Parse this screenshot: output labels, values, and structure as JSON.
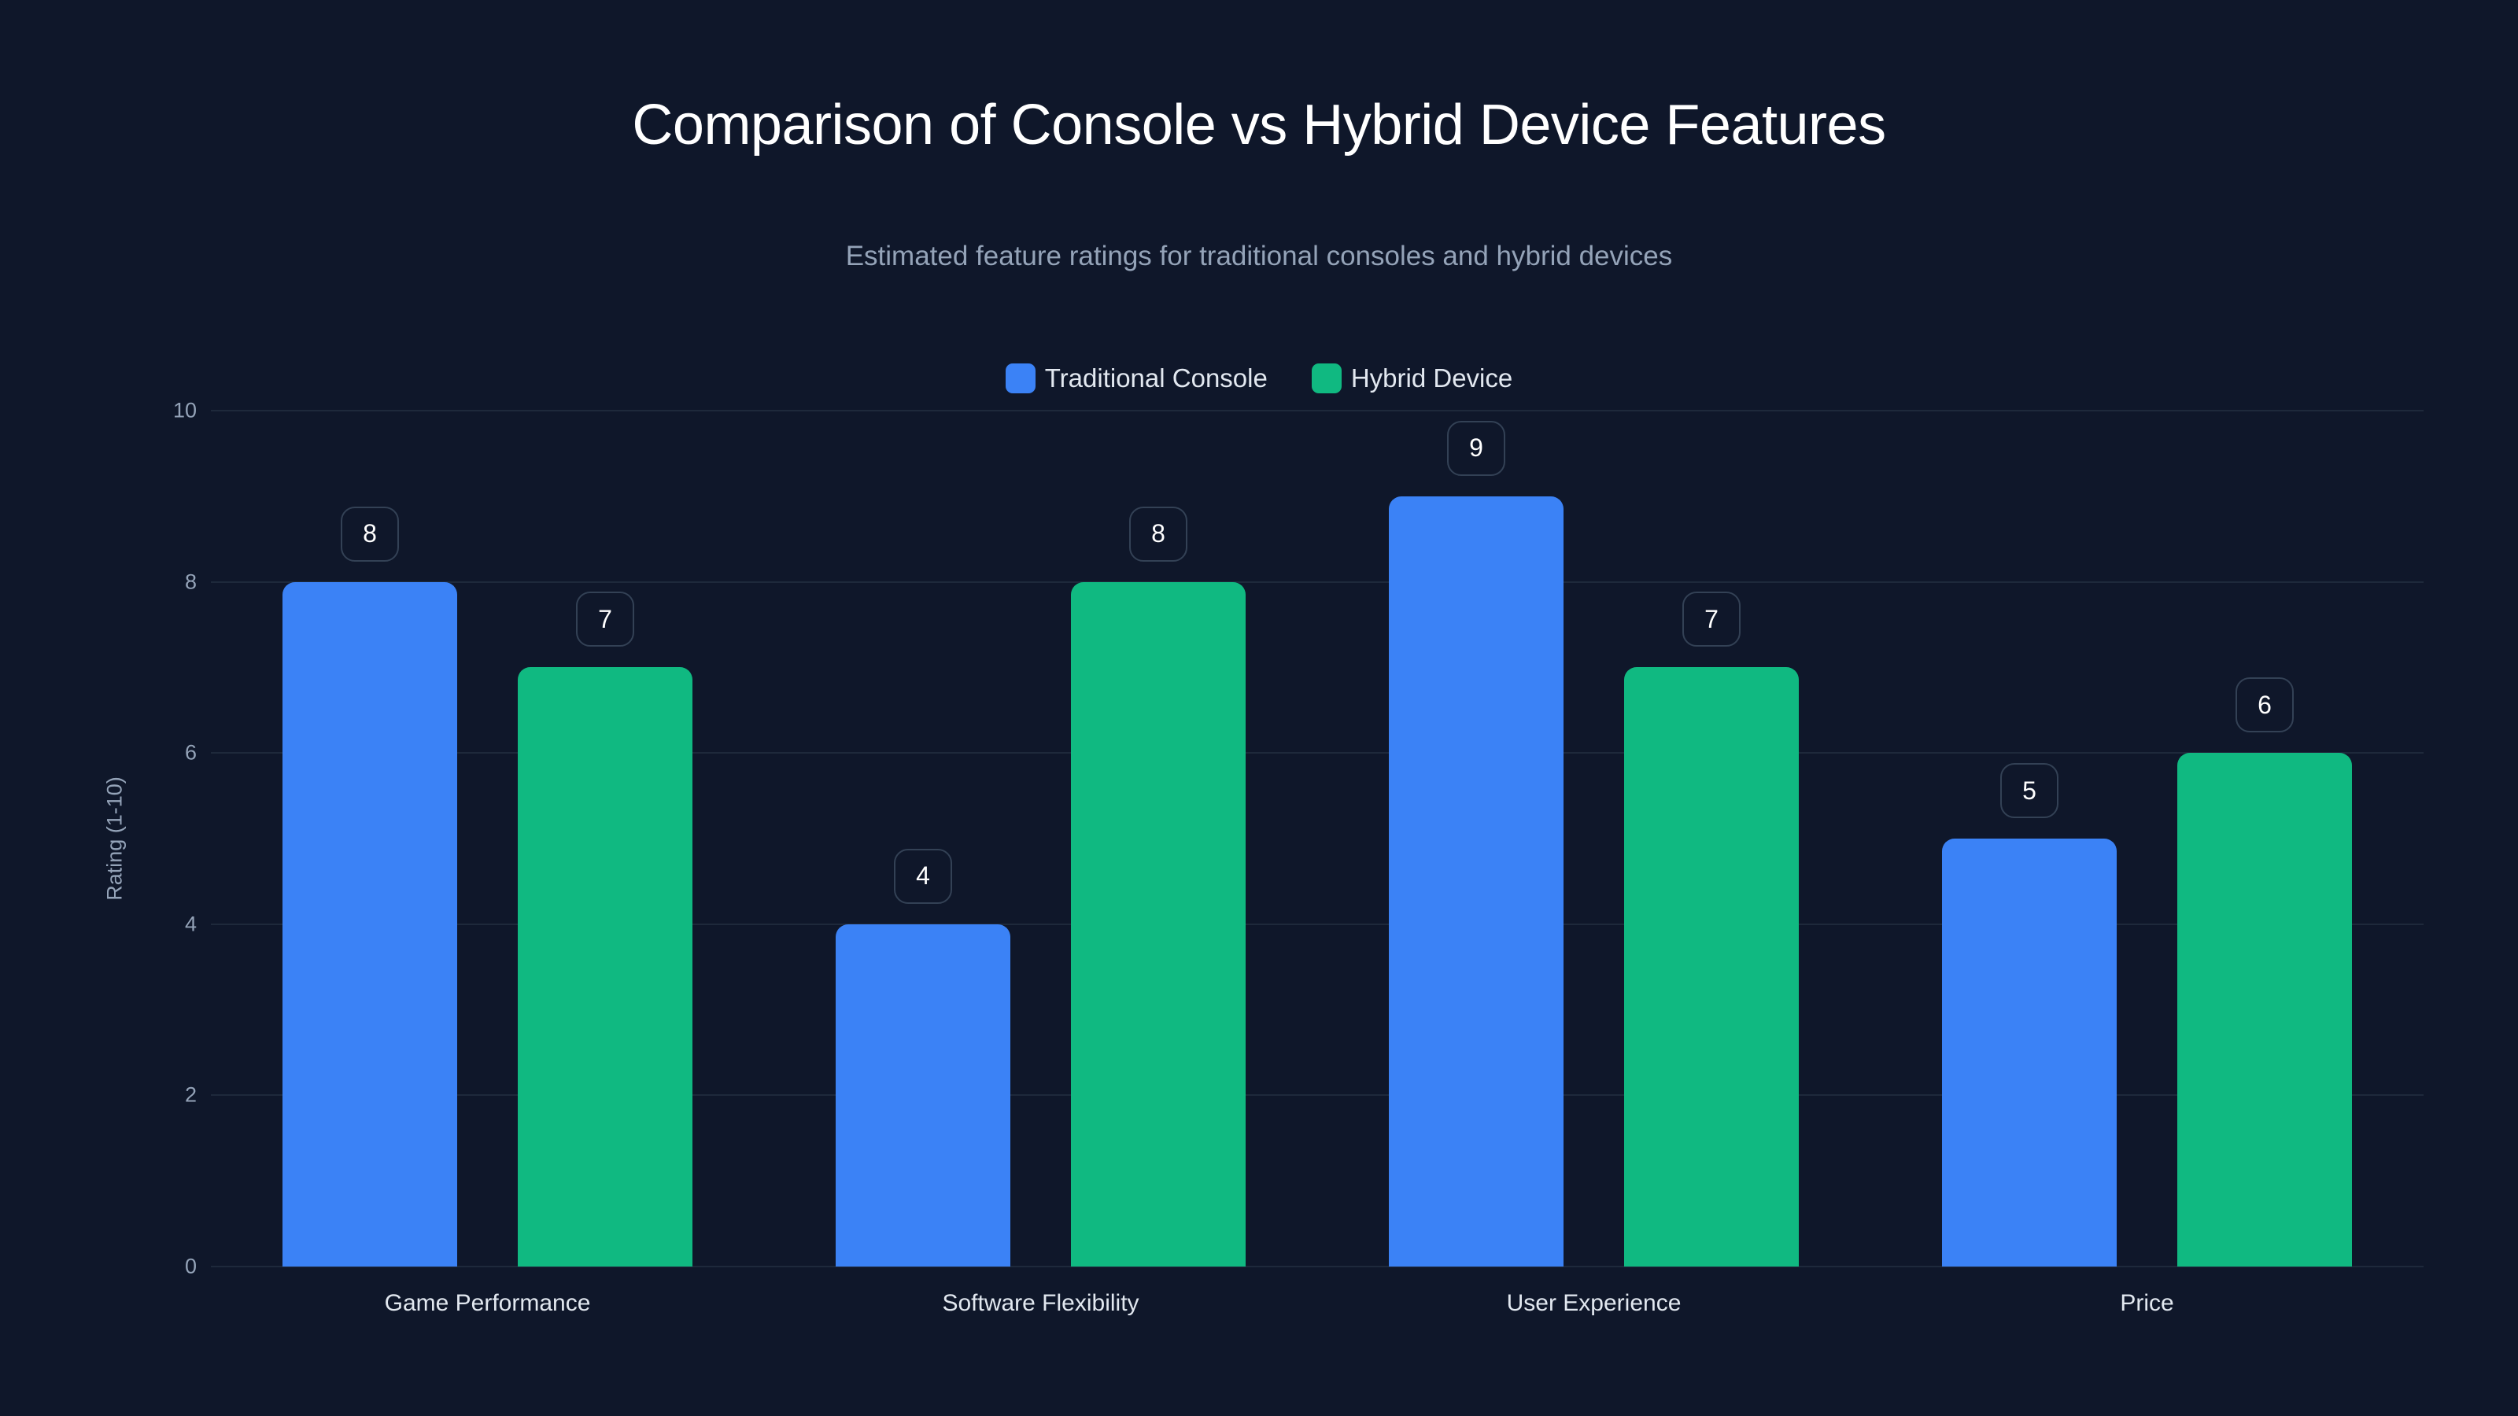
{
  "chart_data": {
    "type": "bar",
    "title": "Comparison of Console vs Hybrid Device Features",
    "subtitle": "Estimated feature ratings for traditional consoles and hybrid devices",
    "xlabel": "",
    "ylabel": "Rating (1-10)",
    "ylim": [
      0,
      10
    ],
    "yticks": [
      "0",
      "2",
      "4",
      "6",
      "8",
      "10"
    ],
    "grid": true,
    "legend_position": "top-center",
    "categories": [
      "Game Performance",
      "Software Flexibility",
      "User Experience",
      "Price"
    ],
    "series": [
      {
        "name": "Traditional Console",
        "color": "#3b82f6",
        "values": [
          8,
          4,
          9,
          5
        ]
      },
      {
        "name": "Hybrid Device",
        "color": "#10b981",
        "values": [
          7,
          8,
          7,
          6
        ]
      }
    ]
  },
  "colors": {
    "background": "#0f172a",
    "grid": "#1e293b",
    "badge_border": "#334155",
    "axis_text": "#94a3b8"
  }
}
